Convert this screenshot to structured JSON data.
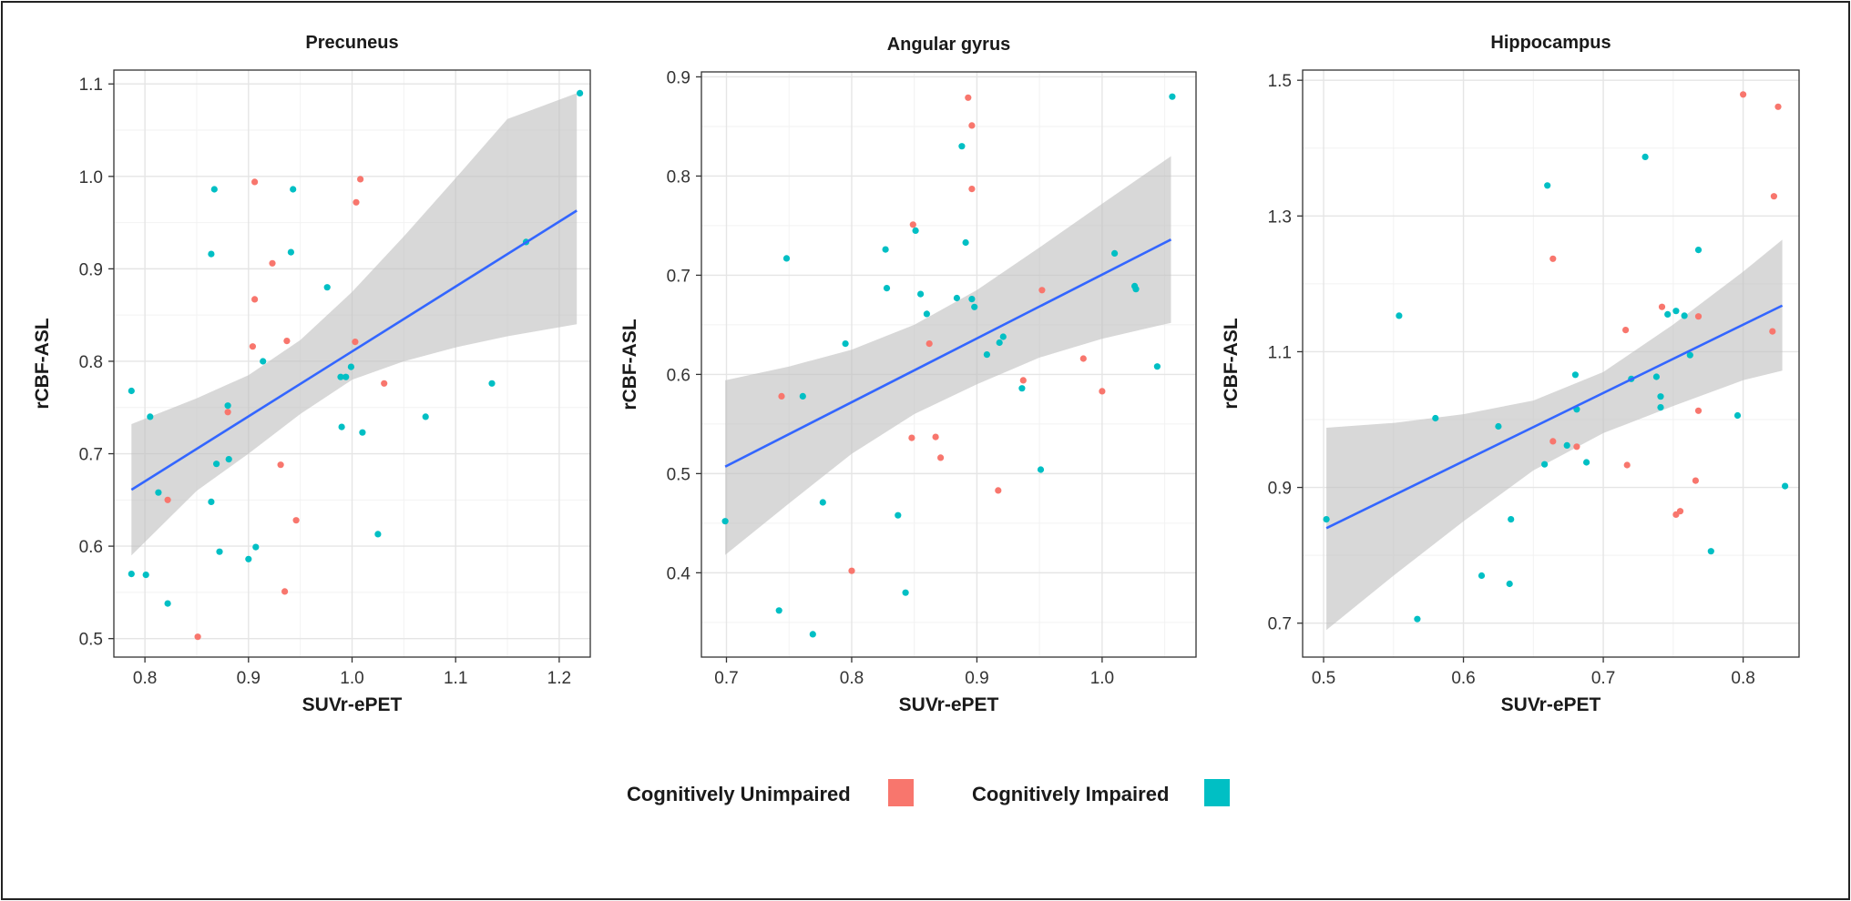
{
  "colors": {
    "unimpaired": "#F8766D",
    "impaired": "#00BFC4",
    "fit_line": "#3366FF",
    "ci_band": "#BEBEBE",
    "grid": "#E5E5E5"
  },
  "legend": {
    "placement": "bottom",
    "items": [
      {
        "label": "Cognitively Unimpaired",
        "color": "#F8766D"
      },
      {
        "label": "Cognitively Impaired",
        "color": "#00BFC4"
      }
    ]
  },
  "chart_data": [
    {
      "type": "scatter",
      "title": "Precuneus",
      "xlabel": "SUVr-ePET",
      "ylabel": "rCBF-ASL",
      "xlim": [
        0.77,
        1.23
      ],
      "ylim": [
        0.48,
        1.115
      ],
      "xticks": [
        "0.8",
        "0.9",
        "1.0",
        "1.1",
        "1.2"
      ],
      "yticks": [
        "0.5",
        "0.6",
        "0.7",
        "0.8",
        "0.9",
        "1.0",
        "1.1"
      ],
      "grid": true,
      "fit": {
        "x": [
          0.787,
          1.217
        ],
        "y": [
          0.661,
          0.963
        ]
      },
      "ci": {
        "x": [
          0.787,
          0.85,
          0.9,
          0.95,
          1.0,
          1.05,
          1.1,
          1.15,
          1.217
        ],
        "upper": [
          0.732,
          0.76,
          0.785,
          0.823,
          0.875,
          0.935,
          0.998,
          1.062,
          1.09
        ],
        "lower": [
          0.59,
          0.66,
          0.7,
          0.743,
          0.78,
          0.8,
          0.815,
          0.827,
          0.84
        ]
      },
      "series": [
        {
          "name": "Cognitively Unimpaired",
          "color": "#F8766D",
          "x": [
            0.906,
            1.008,
            1.004,
            0.923,
            0.906,
            0.937,
            0.904,
            1.003,
            1.031,
            0.88,
            0.931,
            0.822,
            0.946,
            0.935,
            0.851
          ],
          "y": [
            0.994,
            0.997,
            0.972,
            0.906,
            0.867,
            0.822,
            0.816,
            0.821,
            0.776,
            0.745,
            0.688,
            0.65,
            0.628,
            0.551,
            0.502
          ]
        },
        {
          "name": "Cognitively Impaired",
          "color": "#00BFC4",
          "x": [
            1.22,
            0.867,
            0.943,
            1.168,
            0.864,
            0.941,
            0.976,
            0.914,
            0.999,
            0.989,
            0.994,
            1.135,
            0.787,
            0.805,
            0.88,
            1.071,
            0.99,
            1.01,
            0.869,
            0.881,
            0.813,
            0.864,
            1.025,
            0.907,
            0.872,
            0.9,
            0.787,
            0.801,
            0.822
          ],
          "y": [
            1.09,
            0.986,
            0.986,
            0.929,
            0.916,
            0.918,
            0.88,
            0.8,
            0.794,
            0.783,
            0.783,
            0.776,
            0.768,
            0.74,
            0.752,
            0.74,
            0.729,
            0.723,
            0.689,
            0.694,
            0.658,
            0.648,
            0.613,
            0.599,
            0.594,
            0.586,
            0.57,
            0.569,
            0.538
          ]
        }
      ]
    },
    {
      "type": "scatter",
      "title": "Angular gyrus",
      "xlabel": "SUVr-ePET",
      "ylabel": "rCBF-ASL",
      "xlim": [
        0.68,
        1.075
      ],
      "ylim": [
        0.315,
        0.905
      ],
      "xticks": [
        "0.7",
        "0.8",
        "0.9",
        "1.0"
      ],
      "yticks": [
        "0.4",
        "0.5",
        "0.6",
        "0.7",
        "0.8",
        "0.9"
      ],
      "grid": true,
      "fit": {
        "x": [
          0.699,
          1.055
        ],
        "y": [
          0.507,
          0.736
        ]
      },
      "ci": {
        "x": [
          0.699,
          0.75,
          0.8,
          0.85,
          0.9,
          0.95,
          1.0,
          1.055
        ],
        "upper": [
          0.594,
          0.608,
          0.625,
          0.65,
          0.685,
          0.728,
          0.772,
          0.82
        ],
        "lower": [
          0.418,
          0.47,
          0.52,
          0.56,
          0.59,
          0.617,
          0.636,
          0.652
        ]
      },
      "series": [
        {
          "name": "Cognitively Unimpaired",
          "color": "#F8766D",
          "x": [
            0.893,
            0.896,
            0.896,
            0.849,
            0.952,
            0.862,
            0.985,
            0.937,
            1.0,
            0.744,
            0.867,
            0.848,
            0.871,
            0.917,
            0.8
          ],
          "y": [
            0.879,
            0.851,
            0.787,
            0.751,
            0.685,
            0.631,
            0.616,
            0.594,
            0.583,
            0.578,
            0.537,
            0.536,
            0.516,
            0.483,
            0.402
          ]
        },
        {
          "name": "Cognitively Impaired",
          "color": "#00BFC4",
          "x": [
            1.056,
            0.888,
            0.851,
            0.891,
            0.827,
            1.01,
            0.748,
            0.828,
            1.026,
            1.027,
            0.855,
            0.896,
            0.884,
            0.898,
            0.86,
            0.921,
            0.918,
            0.908,
            0.795,
            0.936,
            1.044,
            0.761,
            0.951,
            0.777,
            0.699,
            0.837,
            0.843,
            0.742,
            0.769
          ],
          "y": [
            0.88,
            0.83,
            0.745,
            0.733,
            0.726,
            0.722,
            0.717,
            0.687,
            0.689,
            0.686,
            0.681,
            0.676,
            0.677,
            0.668,
            0.661,
            0.638,
            0.632,
            0.62,
            0.631,
            0.586,
            0.608,
            0.578,
            0.504,
            0.471,
            0.452,
            0.458,
            0.38,
            0.362,
            0.338
          ]
        }
      ]
    },
    {
      "type": "scatter",
      "title": "Hippocampus",
      "xlabel": "SUVr-ePET",
      "ylabel": "rCBF-ASL",
      "xlim": [
        0.485,
        0.84
      ],
      "ylim": [
        0.65,
        1.515
      ],
      "xticks": [
        "0.5",
        "0.6",
        "0.7",
        "0.8"
      ],
      "yticks": [
        "0.7",
        "0.9",
        "1.1",
        "1.3",
        "1.5"
      ],
      "grid": true,
      "fit": {
        "x": [
          0.502,
          0.828
        ],
        "y": [
          0.84,
          1.168
        ]
      },
      "ci": {
        "x": [
          0.502,
          0.55,
          0.6,
          0.65,
          0.7,
          0.75,
          0.8,
          0.828
        ],
        "upper": [
          0.988,
          0.995,
          1.008,
          1.028,
          1.07,
          1.14,
          1.218,
          1.265
        ],
        "lower": [
          0.69,
          0.77,
          0.85,
          0.925,
          0.98,
          1.02,
          1.058,
          1.072
        ]
      },
      "series": [
        {
          "name": "Cognitively Unimpaired",
          "color": "#F8766D",
          "x": [
            0.8,
            0.825,
            0.822,
            0.664,
            0.742,
            0.768,
            0.716,
            0.821,
            0.768,
            0.664,
            0.681,
            0.717,
            0.766,
            0.755,
            0.752
          ],
          "y": [
            1.479,
            1.461,
            1.329,
            1.237,
            1.166,
            1.152,
            1.132,
            1.13,
            1.013,
            0.968,
            0.96,
            0.933,
            0.91,
            0.865,
            0.86
          ]
        },
        {
          "name": "Cognitively Impaired",
          "color": "#00BFC4",
          "x": [
            0.73,
            0.66,
            0.768,
            0.554,
            0.752,
            0.746,
            0.758,
            0.762,
            0.68,
            0.738,
            0.72,
            0.741,
            0.681,
            0.741,
            0.58,
            0.796,
            0.625,
            0.674,
            0.658,
            0.688,
            0.83,
            0.502,
            0.634,
            0.777,
            0.613,
            0.633,
            0.567
          ],
          "y": [
            1.387,
            1.345,
            1.25,
            1.153,
            1.16,
            1.155,
            1.153,
            1.095,
            1.066,
            1.063,
            1.06,
            1.034,
            1.015,
            1.018,
            1.002,
            1.006,
            0.99,
            0.962,
            0.934,
            0.937,
            0.902,
            0.853,
            0.853,
            0.806,
            0.77,
            0.758,
            0.706
          ]
        }
      ]
    }
  ]
}
